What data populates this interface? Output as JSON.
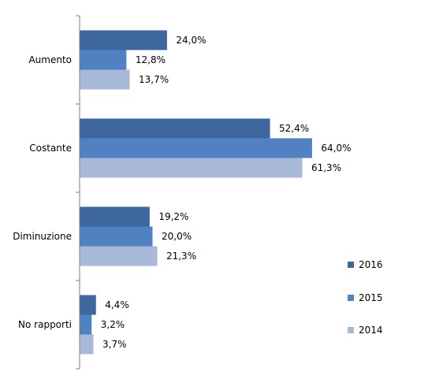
{
  "chart_data": {
    "type": "bar",
    "orientation": "horizontal",
    "categories": [
      "Aumento",
      "Costante",
      "Diminuzione",
      "No rapporti"
    ],
    "series": [
      {
        "name": "2016",
        "color": "#3f679f",
        "values": [
          24.0,
          52.4,
          19.2,
          4.4
        ],
        "labels": [
          "24,0%",
          "52,4%",
          "19,2%",
          "4,4%"
        ]
      },
      {
        "name": "2015",
        "color": "#4f81c3",
        "values": [
          12.8,
          64.0,
          20.0,
          3.2
        ],
        "labels": [
          "12,8%",
          "64,0%",
          "20,0%",
          "3,2%"
        ]
      },
      {
        "name": "2014",
        "color": "#a8b8d8",
        "values": [
          13.7,
          61.3,
          21.3,
          3.7
        ],
        "labels": [
          "13,7%",
          "61,3%",
          "21,3%",
          "3,7%"
        ]
      }
    ],
    "legend_position": "right",
    "grid": false,
    "axis_color": "#7f7f7f"
  }
}
